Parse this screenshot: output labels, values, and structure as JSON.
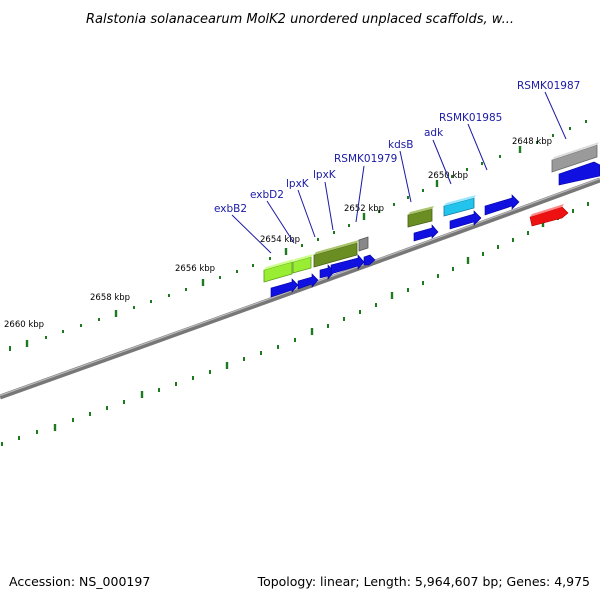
{
  "title": "Ralstonia solanacearum MolK2 unordered unplaced scaffolds, w...",
  "kbp_labels": [
    "2648 kbp",
    "2650 kbp",
    "2652 kbp",
    "2654 kbp",
    "2656 kbp",
    "2658 kbp",
    "2660 kbp"
  ],
  "gene_labels": [
    "exbB2",
    "exbD2",
    "lpxK",
    "lpxK",
    "RSMK01979",
    "kdsB",
    "adk",
    "RSMK01985",
    "RSMK01987"
  ],
  "footer": {
    "accession": "Accession: NS_000197",
    "topology": "Topology: linear; Length: 5,964,607 bp; Genes: 4,975"
  },
  "colors": {
    "backbone": "#808080",
    "tick": "#1e7a1e",
    "label": "#1a1aa6",
    "cds": "#1010e0",
    "gene_lime": "#99ee33",
    "gene_olive": "#6b8e23",
    "gene_cyan": "#22c4ee",
    "gene_gray": "#999999",
    "gene_red": "#ee1111"
  }
}
